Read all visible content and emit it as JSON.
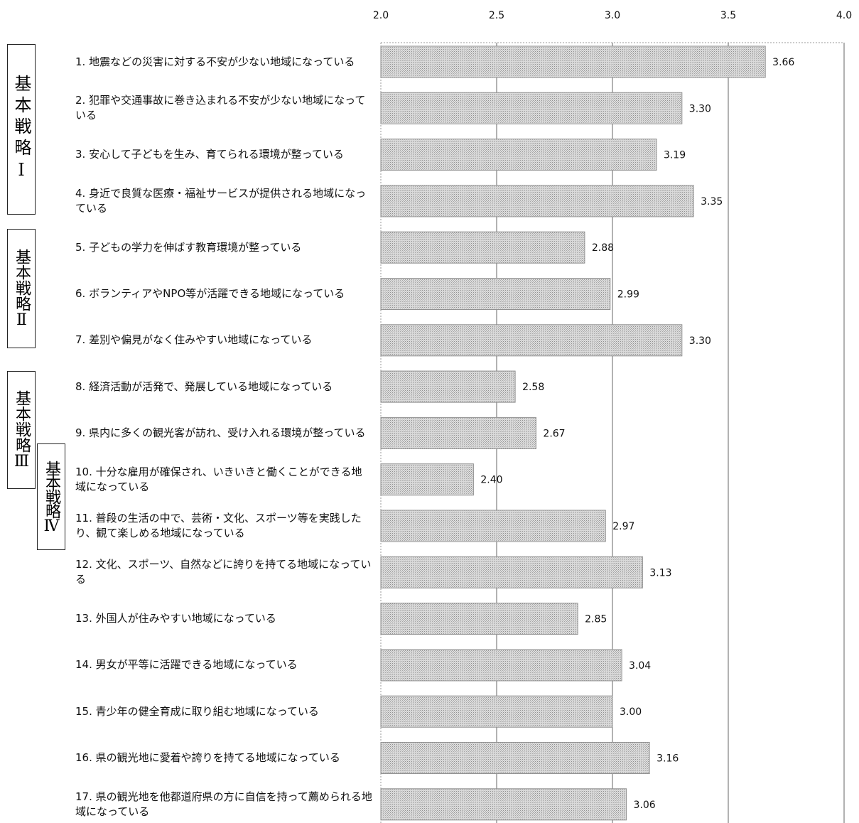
{
  "chart_data": {
    "type": "bar",
    "orientation": "horizontal",
    "categories": [
      "1. 地震などの災害に対する不安が少ない地域になっている",
      "2. 犯罪や交通事故に巻き込まれる不安が少ない地域になっている",
      "3. 安心して子どもを生み、育てられる環境が整っている",
      "4. 身近で良質な医療・福祉サービスが提供される地域になっている",
      "5. 子どもの学力を伸ばす教育環境が整っている",
      "6. ボランティアやNPO等が活躍できる地域になっている",
      "7. 差別や偏見がなく住みやすい地域になっている",
      "8. 経済活動が活発で、発展している地域になっている",
      "9. 県内に多くの観光客が訪れ、受け入れる環境が整っている",
      "10. 十分な雇用が確保され、いきいきと働くことができる地域になっている",
      "11. 普段の生活の中で、芸術・文化、スポーツ等を実践したり、観て楽しめる地域になっている",
      "12. 文化、スポーツ、自然などに誇りを持てる地域になっている",
      "13. 外国人が住みやすい地域になっている",
      "14. 男女が平等に活躍できる地域になっている",
      "15. 青少年の健全育成に取り組む地域になっている",
      "16. 県の観光地に愛着や誇りを持てる地域になっている",
      "17. 県の観光地を他都道府県の方に自信を持って薦められる地域になっている"
    ],
    "values": [
      3.66,
      3.3,
      3.19,
      3.35,
      2.88,
      2.99,
      3.3,
      2.58,
      2.67,
      2.4,
      2.97,
      3.13,
      2.85,
      3.04,
      3.0,
      3.16,
      3.06
    ],
    "value_labels": [
      "3.66",
      "3.30",
      "3.19",
      "3.35",
      "2.88",
      "2.99",
      "3.30",
      "2.58",
      "2.67",
      "2.40",
      "2.97",
      "3.13",
      "2.85",
      "3.04",
      "3.00",
      "3.16",
      "3.06"
    ],
    "color": "#c4c4c4",
    "xlim": [
      2,
      4
    ],
    "xticks": [
      {
        "value": 2,
        "label": "2.0"
      },
      2.5,
      {
        "value": 3,
        "label": "3.0"
      },
      3.5,
      {
        "value": 4,
        "label": "4.0"
      }
    ],
    "grid": true,
    "groups": [
      {
        "label": "基本戦略Ⅰ"
      },
      {
        "label": "基本戦略Ⅱ"
      },
      {
        "label": "基本戦略Ⅲ"
      },
      {
        "label": "基本戦略Ⅳ"
      }
    ]
  }
}
